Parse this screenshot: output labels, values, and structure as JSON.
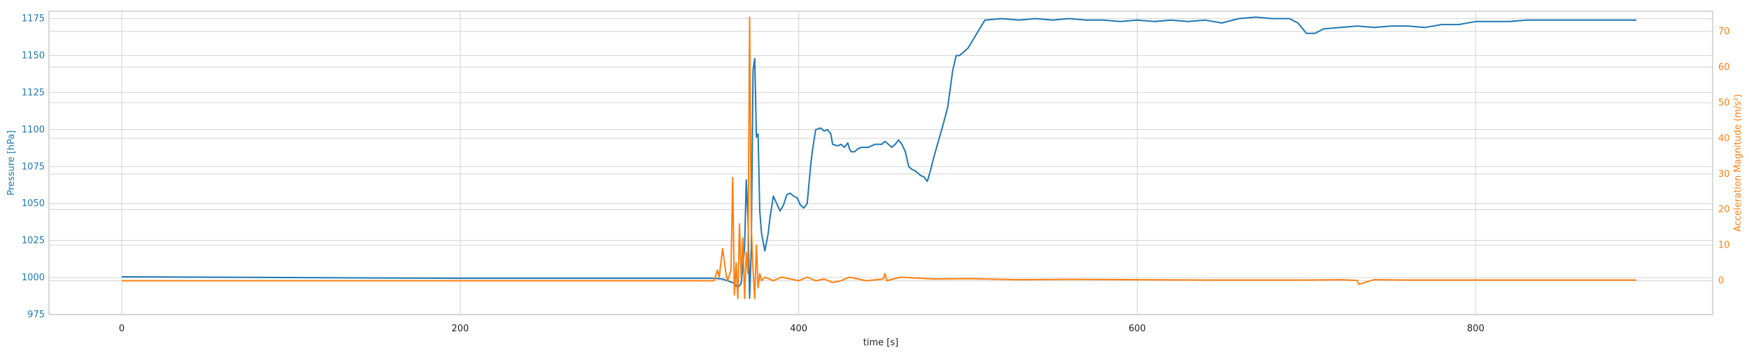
{
  "chart_data": {
    "type": "line",
    "xlabel": "time [s]",
    "ylabel_left": "Pressure [hPa]",
    "ylabel_right": "Acceleration Magnitude (m/s²)",
    "xlim": [
      -43,
      940
    ],
    "ylim_left": [
      975,
      1180
    ],
    "ylim_right": [
      -9.5,
      75.7
    ],
    "xticks": [
      0,
      200,
      400,
      600,
      800
    ],
    "yticks_left": [
      975,
      1000,
      1025,
      1050,
      1075,
      1100,
      1125,
      1150,
      1175
    ],
    "yticks_right": [
      0,
      10,
      20,
      30,
      40,
      50,
      60,
      70
    ],
    "grid": true,
    "colors": {
      "pressure": "#1f77b4",
      "acceleration": "#ff7f0e",
      "grid": "#d9d9d9",
      "frame": "#cccccc"
    },
    "series": [
      {
        "axis": "left",
        "color": "#1f77b4",
        "x": [
          0,
          200,
          350,
          355,
          360,
          362,
          364,
          366,
          368,
          369,
          370,
          371,
          372,
          373,
          374,
          375,
          376,
          377,
          378,
          380,
          382,
          383,
          385,
          387,
          389,
          391,
          393,
          395,
          397,
          399,
          401,
          403,
          405,
          407,
          408,
          410,
          413,
          415,
          417,
          419,
          420,
          423,
          425,
          427,
          429,
          430,
          431,
          433,
          435,
          437,
          439,
          441,
          443,
          445,
          447,
          449,
          451,
          453,
          455,
          457,
          459,
          461,
          463,
          465,
          467,
          469,
          470,
          472,
          474,
          476,
          478,
          480,
          482,
          485,
          488,
          491,
          493,
          495,
          500,
          510,
          520,
          530,
          540,
          550,
          560,
          570,
          580,
          590,
          600,
          610,
          620,
          630,
          640,
          650,
          660,
          670,
          680,
          690,
          695,
          700,
          705,
          710,
          720,
          730,
          740,
          750,
          760,
          770,
          780,
          790,
          800,
          810,
          820,
          830,
          840,
          850,
          860,
          870,
          880,
          890,
          895
        ],
        "y": [
          1000.5,
          999.5,
          999.5,
          999,
          997,
          996,
          993,
          996,
          1020,
          1066,
          1040,
          986,
          1020,
          1140,
          1148,
          1095,
          1097,
          1045,
          1030,
          1018,
          1030,
          1040,
          1055,
          1050,
          1045,
          1049,
          1056,
          1057,
          1055,
          1054,
          1049,
          1047,
          1050,
          1075,
          1085,
          1100,
          1101,
          1099,
          1100,
          1097,
          1090,
          1089,
          1090,
          1088,
          1091,
          1087,
          1085,
          1085,
          1087,
          1088,
          1088,
          1088,
          1089,
          1090,
          1090,
          1090,
          1092,
          1090,
          1088,
          1090,
          1093,
          1090,
          1085,
          1075,
          1073,
          1072,
          1071,
          1069,
          1068,
          1065,
          1073,
          1082,
          1090,
          1102,
          1115,
          1140,
          1150,
          1150,
          1155,
          1174,
          1175,
          1174,
          1175,
          1174,
          1175,
          1174,
          1174,
          1173,
          1174,
          1173,
          1174,
          1173,
          1174,
          1172,
          1175,
          1176,
          1175,
          1175,
          1172,
          1165,
          1165,
          1168,
          1169,
          1170,
          1169,
          1170,
          1170,
          1169,
          1171,
          1171,
          1173,
          1173,
          1173,
          1174,
          1174,
          1174,
          1174,
          1174,
          1174,
          1174,
          1174
        ]
      },
      {
        "axis": "right",
        "color": "#ff7f0e",
        "x": [
          0,
          100,
          200,
          300,
          350,
          352,
          353,
          355,
          357,
          358,
          360,
          361,
          362,
          363,
          364,
          365,
          366,
          367,
          368,
          369,
          370,
          371,
          372,
          373,
          374,
          375,
          376,
          377,
          378,
          380,
          385,
          390,
          395,
          400,
          405,
          410,
          415,
          420,
          425,
          430,
          440,
          450,
          451,
          452,
          460,
          480,
          500,
          530,
          560,
          600,
          640,
          680,
          700,
          720,
          730,
          731,
          740,
          760,
          800,
          850,
          895
        ],
        "y": [
          0,
          0,
          0,
          0,
          0,
          3,
          1,
          9,
          2,
          0,
          3,
          29,
          -4,
          5,
          -5,
          16,
          1,
          12,
          -5,
          8,
          2,
          74,
          15,
          3,
          -5,
          10,
          -2,
          2,
          0,
          1,
          0,
          1,
          0.5,
          0,
          1,
          0,
          0.5,
          -0.5,
          0,
          1,
          0,
          0.5,
          2,
          0,
          1,
          0.5,
          0.6,
          0.3,
          0.4,
          0.3,
          0.2,
          0.2,
          0.2,
          0.3,
          0.1,
          -1,
          0.3,
          0.2,
          0.2,
          0.2,
          0.2
        ]
      }
    ]
  }
}
